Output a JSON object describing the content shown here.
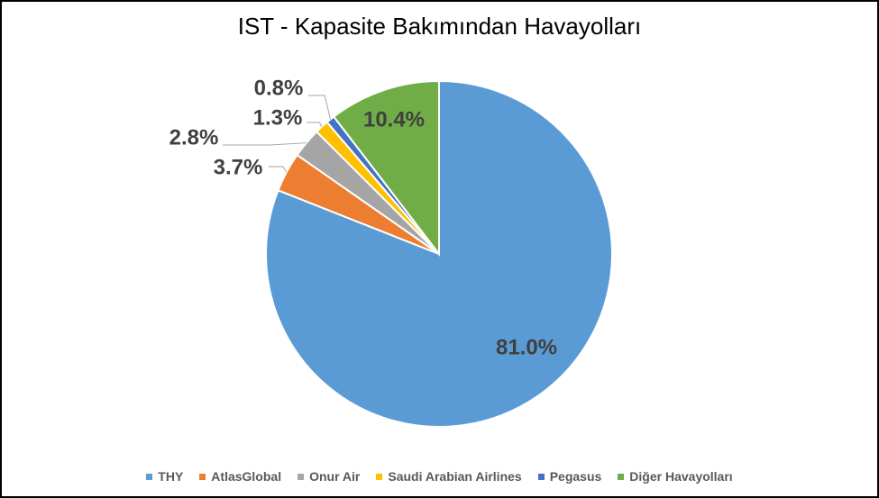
{
  "chart_data": {
    "type": "pie",
    "title": "IST - Kapasite Bakımından Havayolları",
    "categories": [
      "THY",
      "AtlasGlobal",
      "Onur Air",
      "Saudi Arabian Airlines",
      "Pegasus",
      "Diğer Havayolları"
    ],
    "values": [
      81.0,
      3.7,
      2.8,
      1.3,
      0.8,
      10.4
    ],
    "labels": [
      "81.0%",
      "3.7%",
      "2.8%",
      "1.3%",
      "0.8%",
      "10.4%"
    ],
    "colors": [
      "#5B9BD5",
      "#ED7D31",
      "#A5A5A5",
      "#FFC000",
      "#4472C4",
      "#70AD47"
    ],
    "legend_position": "bottom"
  }
}
